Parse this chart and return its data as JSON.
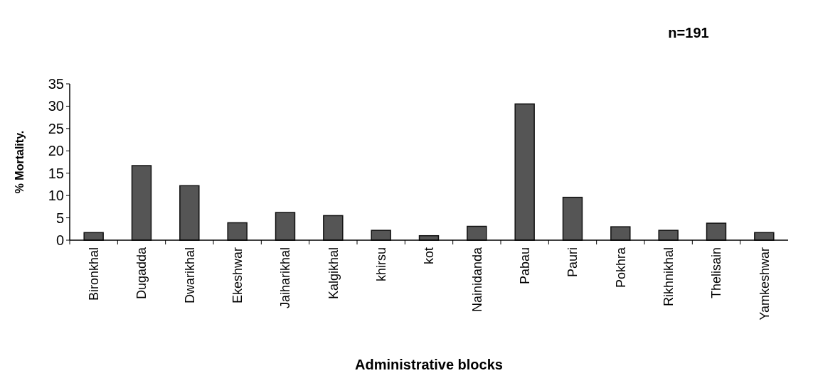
{
  "chart_data": {
    "type": "bar",
    "title": "n=191",
    "xlabel": "Administrative blocks",
    "ylabel": "% Mortality.",
    "categories": [
      "Bironkhal",
      "Dugadda",
      "Dwarikhal",
      "Ekeshwar",
      "Jaiharikhal",
      "Kalgikhal",
      "khirsu",
      "kot",
      "Nainidanda",
      "Pabau",
      "Pauri",
      "Pokhra",
      "Rikhnikhal",
      "Thelisain",
      "Yamkeshwar"
    ],
    "values": [
      1.7,
      16.7,
      12.2,
      3.9,
      6.2,
      5.5,
      2.2,
      1.0,
      3.1,
      30.5,
      9.6,
      3.0,
      2.2,
      3.8,
      1.7
    ],
    "color": "#555555",
    "ylim": [
      0,
      35
    ],
    "yticks": [
      0,
      5,
      10,
      15,
      20,
      25,
      30,
      35
    ],
    "grid": false
  }
}
